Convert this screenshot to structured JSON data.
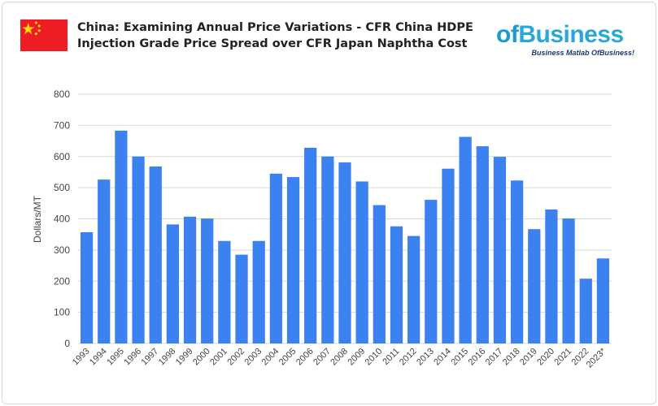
{
  "header": {
    "title_line1": "China: Examining Annual Price Variations - CFR China HDPE",
    "title_line2": "Injection Grade Price Spread over CFR Japan Naphtha Cost",
    "flag_icon": "china-flag-icon",
    "logo": {
      "text_prefix": "of",
      "text_main": "Business",
      "tagline": "Business Matlab OfBusiness!"
    }
  },
  "colors": {
    "bar": "#3b82f0",
    "grid": "#d9d9d9",
    "flag": "#ee1c25"
  },
  "chart_data": {
    "type": "bar",
    "title": "China: Examining Annual Price Variations - CFR China HDPE Injection Grade Price Spread over CFR Japan Naphtha Cost",
    "xlabel": "",
    "ylabel": "Dollars/MT",
    "ylim": [
      0,
      800
    ],
    "yticks": [
      0,
      100,
      200,
      300,
      400,
      500,
      600,
      700,
      800
    ],
    "grid": true,
    "categories": [
      "1993",
      "1994",
      "1995",
      "1996",
      "1997",
      "1998",
      "1999",
      "2000",
      "2001",
      "2002",
      "2003",
      "2004",
      "2005",
      "2006",
      "2007",
      "2008",
      "2009",
      "2010",
      "2011",
      "2012",
      "2013",
      "2014",
      "2015",
      "2016",
      "2017",
      "2018",
      "2019",
      "2020",
      "2021",
      "2022",
      "2023*"
    ],
    "values": [
      357,
      526,
      683,
      600,
      568,
      382,
      407,
      401,
      329,
      285,
      329,
      545,
      534,
      628,
      600,
      581,
      520,
      444,
      376,
      345,
      461,
      561,
      663,
      633,
      599,
      523,
      367,
      430,
      401,
      208,
      273
    ]
  }
}
